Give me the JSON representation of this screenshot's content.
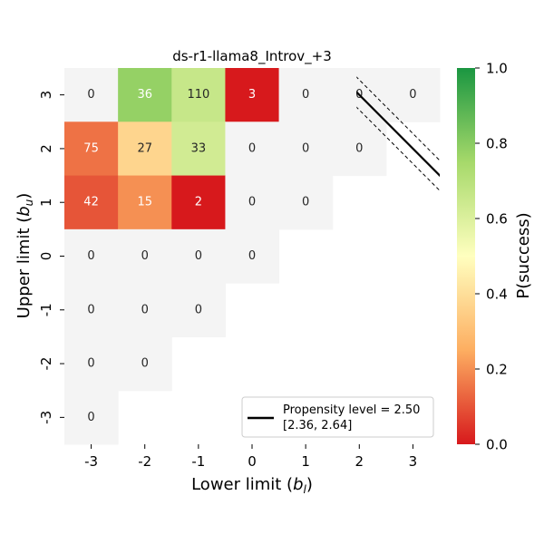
{
  "chart_data": {
    "type": "heatmap",
    "title": "ds-r1-llama8_Introv_+3",
    "xlabel_text": "Lower limit (",
    "xlabel_sym": "b",
    "xlabel_sub": "l",
    "xlabel_close": ")",
    "ylabel_text": "Upper limit (",
    "ylabel_sym": "b",
    "ylabel_sub": "u",
    "ylabel_close": ")",
    "x_categories": [
      "-3",
      "-2",
      "-1",
      "0",
      "1",
      "2",
      "3"
    ],
    "y_categories": [
      "3",
      "2",
      "1",
      "0",
      "-1",
      "-2",
      "-3"
    ],
    "cells": [
      {
        "x": "-3",
        "y": "3",
        "count": "0",
        "p": null
      },
      {
        "x": "-2",
        "y": "3",
        "count": "36",
        "p": 0.78
      },
      {
        "x": "-1",
        "y": "3",
        "count": "110",
        "p": 0.66
      },
      {
        "x": "0",
        "y": "3",
        "count": "3",
        "p": 0.0
      },
      {
        "x": "1",
        "y": "3",
        "count": "0",
        "p": null
      },
      {
        "x": "2",
        "y": "3",
        "count": "0",
        "p": null
      },
      {
        "x": "3",
        "y": "3",
        "count": "0",
        "p": null
      },
      {
        "x": "-3",
        "y": "2",
        "count": "75",
        "p": 0.15
      },
      {
        "x": "-2",
        "y": "2",
        "count": "27",
        "p": 0.37
      },
      {
        "x": "-1",
        "y": "2",
        "count": "33",
        "p": 0.63
      },
      {
        "x": "0",
        "y": "2",
        "count": "0",
        "p": null
      },
      {
        "x": "1",
        "y": "2",
        "count": "0",
        "p": null
      },
      {
        "x": "2",
        "y": "2",
        "count": "0",
        "p": null
      },
      {
        "x": "-3",
        "y": "1",
        "count": "42",
        "p": 0.1
      },
      {
        "x": "-2",
        "y": "1",
        "count": "15",
        "p": 0.2
      },
      {
        "x": "-1",
        "y": "1",
        "count": "2",
        "p": 0.0
      },
      {
        "x": "0",
        "y": "1",
        "count": "0",
        "p": null
      },
      {
        "x": "1",
        "y": "1",
        "count": "0",
        "p": null
      },
      {
        "x": "-3",
        "y": "0",
        "count": "0",
        "p": null
      },
      {
        "x": "-2",
        "y": "0",
        "count": "0",
        "p": null
      },
      {
        "x": "-1",
        "y": "0",
        "count": "0",
        "p": null
      },
      {
        "x": "0",
        "y": "0",
        "count": "0",
        "p": null
      },
      {
        "x": "-3",
        "y": "-1",
        "count": "0",
        "p": null
      },
      {
        "x": "-2",
        "y": "-1",
        "count": "0",
        "p": null
      },
      {
        "x": "-1",
        "y": "-1",
        "count": "0",
        "p": null
      },
      {
        "x": "-3",
        "y": "-2",
        "count": "0",
        "p": null
      },
      {
        "x": "-2",
        "y": "-2",
        "count": "0",
        "p": null
      },
      {
        "x": "-3",
        "y": "-3",
        "count": "0",
        "p": null
      }
    ],
    "colorbar": {
      "label": "P(success)",
      "range": [
        0.0,
        1.0
      ],
      "ticks": [
        "0.0",
        "0.2",
        "0.4",
        "0.6",
        "0.8",
        "1.0"
      ],
      "stops": [
        "#d7191c",
        "#fdae61",
        "#ffffbf",
        "#a6d96a",
        "#1a9641"
      ]
    },
    "propensity_line": {
      "level": 2.5,
      "ci": [
        2.36,
        2.64
      ],
      "legend_label": "Propensity level = 2.50",
      "legend_ci": "[2.36, 2.64]"
    },
    "legend_position": "lower-right",
    "nan_color": "#f4f4f4"
  }
}
